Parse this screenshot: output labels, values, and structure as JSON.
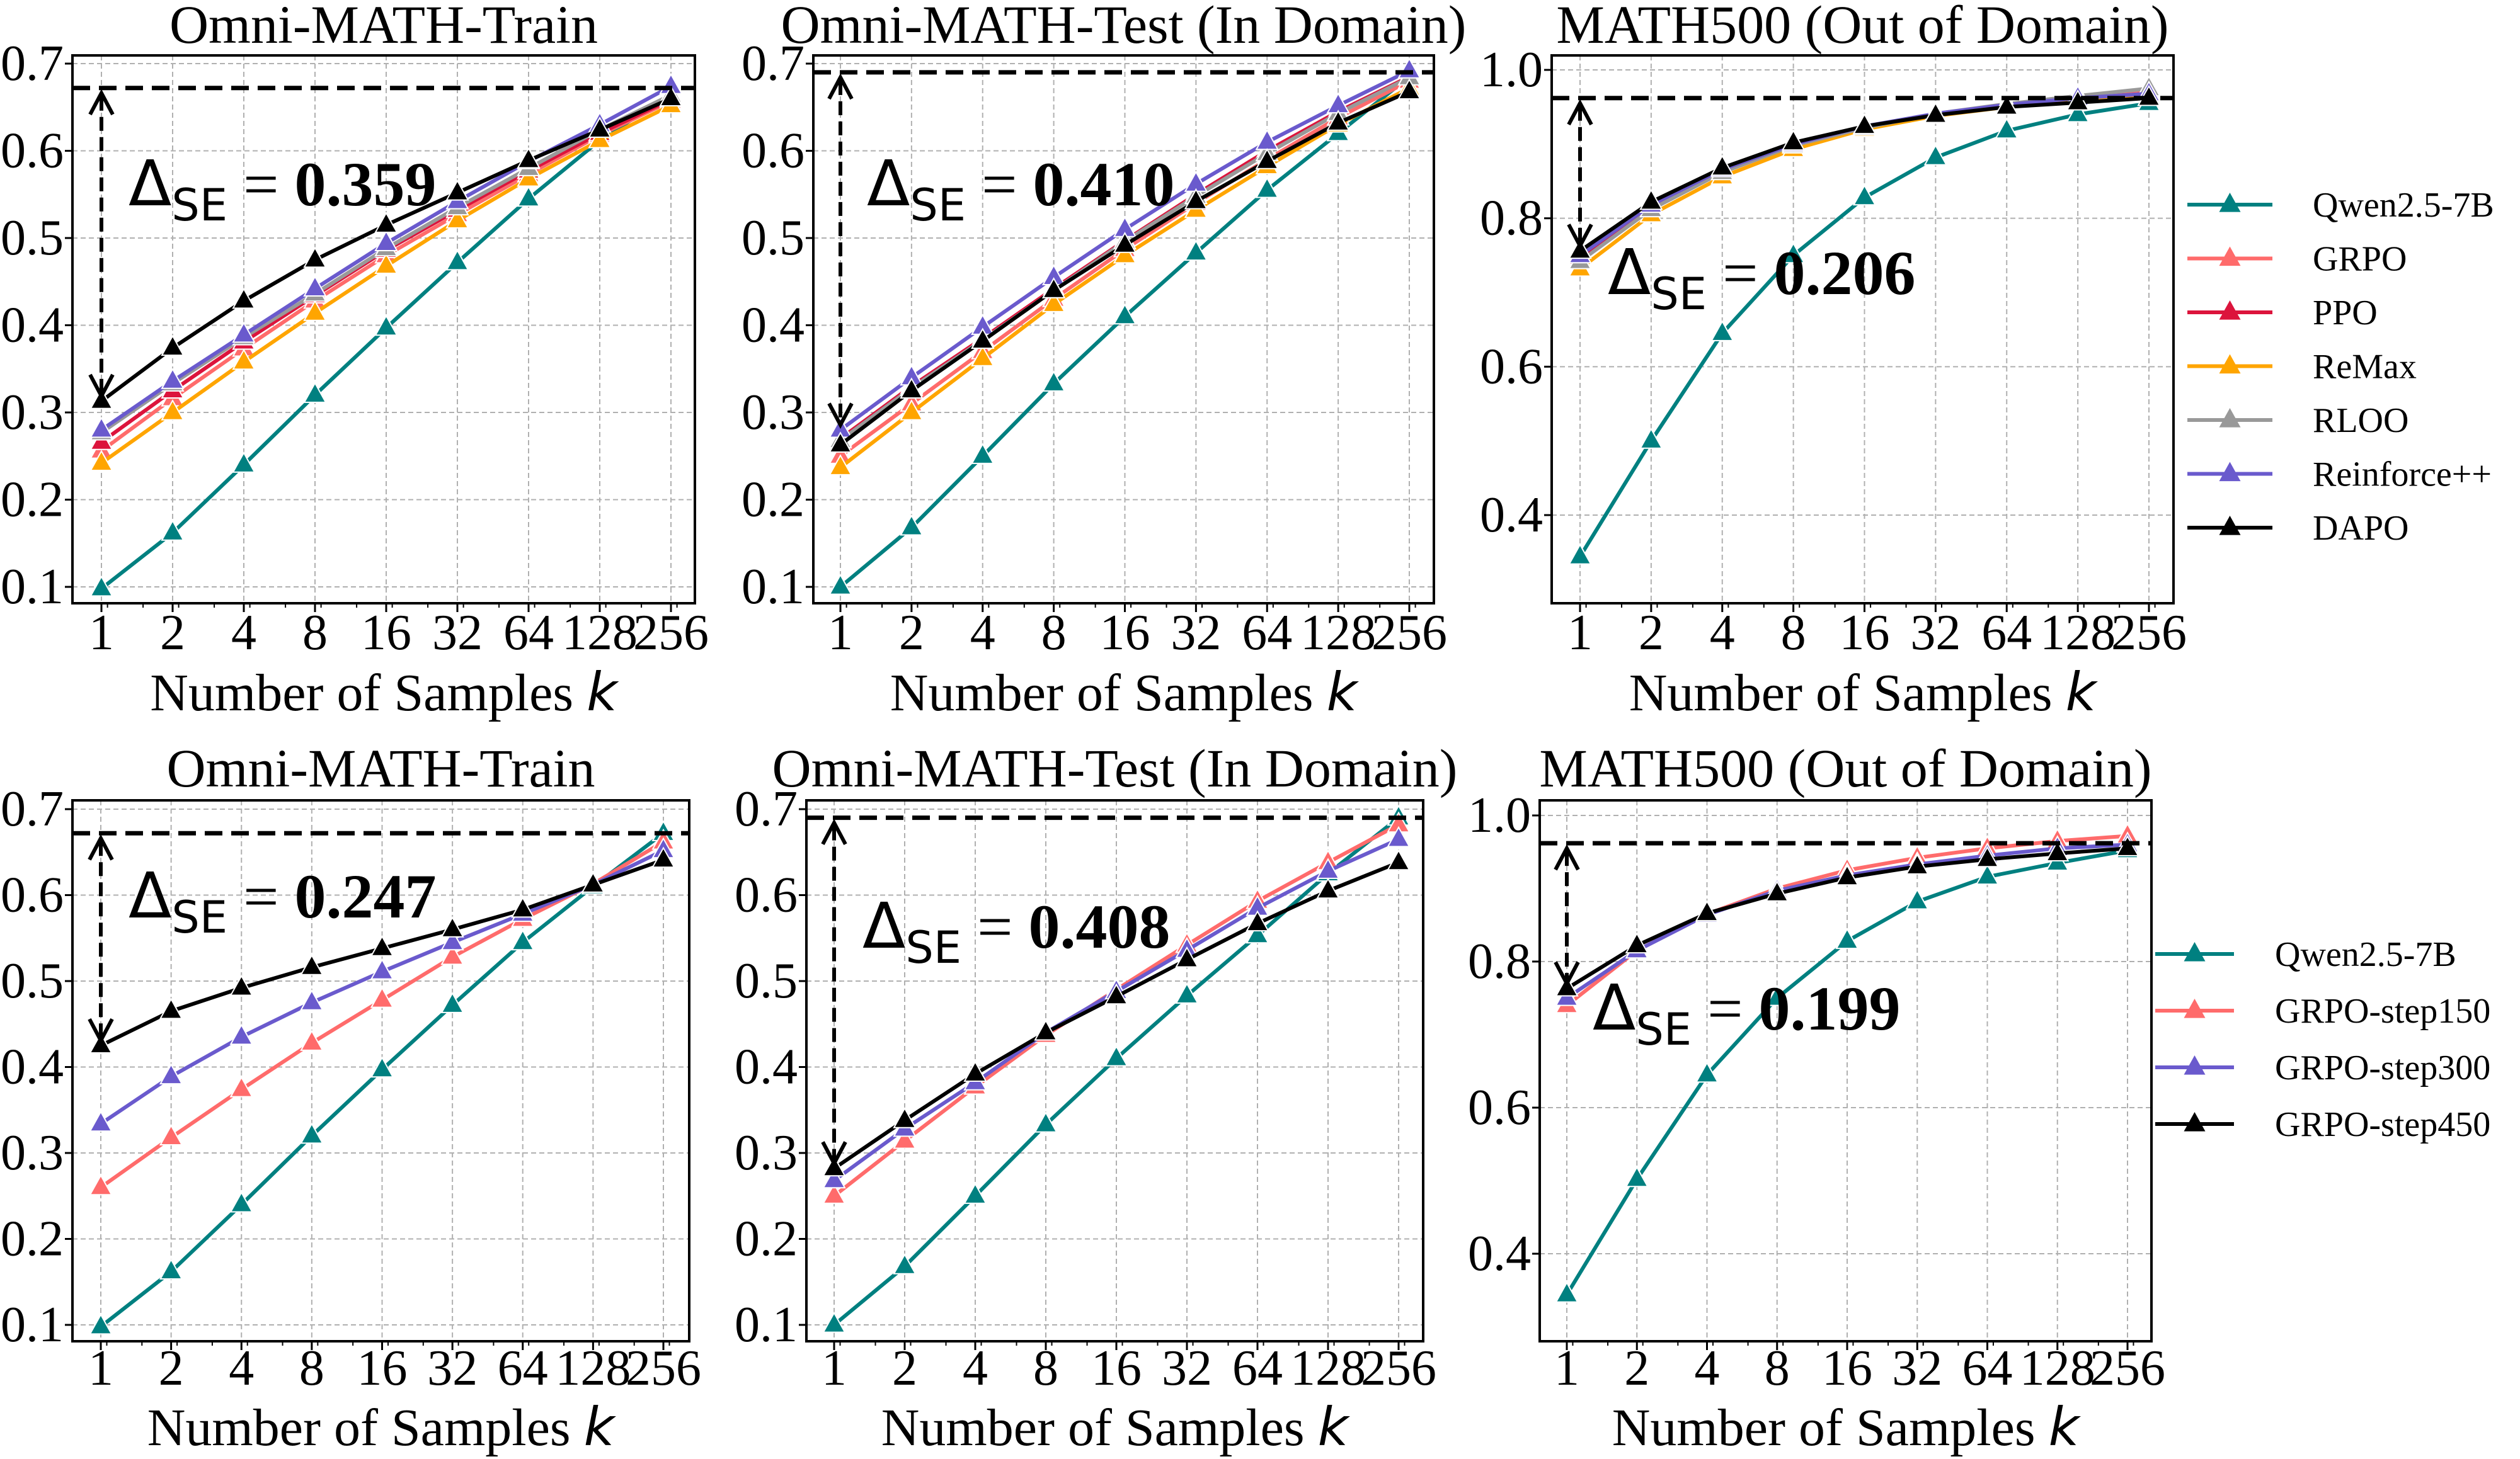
{
  "chart_data": [
    {
      "type": "line",
      "title": "Omni-MATH-Train",
      "xlabel": "Number of Samples",
      "xlabel_var": "k",
      "x": [
        1,
        2,
        4,
        8,
        16,
        32,
        64,
        128,
        256
      ],
      "xscale": "log2",
      "xticks": [
        "1",
        "2",
        "4",
        "8",
        "16",
        "32",
        "64",
        "128",
        "256"
      ],
      "yticks": [
        0.1,
        0.2,
        0.3,
        0.4,
        0.5,
        0.6,
        0.7
      ],
      "ytick_labels": [
        "0.1",
        "0.2",
        "0.3",
        "0.4",
        "0.5",
        "0.6",
        "0.7"
      ],
      "ylim": [
        0.08,
        0.71
      ],
      "grid": true,
      "marker": "triangle",
      "reference_line": 0.672,
      "arrow": [
        0.313,
        0.672
      ],
      "annotation": {
        "symbol": "Δ",
        "subscript": "SE",
        "equals": " = ",
        "value": "0.359"
      },
      "series": [
        {
          "name": "Qwen2.5-7B",
          "color": "#008080",
          "values": [
            0.098,
            0.162,
            0.24,
            0.32,
            0.397,
            0.472,
            0.545,
            0.612,
            0.665
          ]
        },
        {
          "name": "GRPO",
          "color": "#FF6B6B",
          "values": [
            0.256,
            0.316,
            0.373,
            0.428,
            0.48,
            0.527,
            0.573,
            0.618,
            0.657
          ]
        },
        {
          "name": "PPO",
          "color": "#DC143C",
          "values": [
            0.266,
            0.325,
            0.381,
            0.434,
            0.486,
            0.532,
            0.577,
            0.62,
            0.659
          ]
        },
        {
          "name": "ReMax",
          "color": "#FFA500",
          "values": [
            0.242,
            0.3,
            0.358,
            0.414,
            0.468,
            0.52,
            0.568,
            0.612,
            0.652
          ]
        },
        {
          "name": "RLOO",
          "color": "#999999",
          "values": [
            0.277,
            0.333,
            0.386,
            0.436,
            0.488,
            0.535,
            0.58,
            0.624,
            0.664
          ]
        },
        {
          "name": "Reinforce++",
          "color": "#6A5ACD",
          "values": [
            0.28,
            0.336,
            0.389,
            0.442,
            0.494,
            0.542,
            0.588,
            0.63,
            0.674
          ]
        },
        {
          "name": "DAPO",
          "color": "#000000",
          "values": [
            0.313,
            0.374,
            0.428,
            0.475,
            0.515,
            0.552,
            0.589,
            0.624,
            0.66
          ]
        }
      ]
    },
    {
      "type": "line",
      "title": "Omni-MATH-Test (In Domain)",
      "xlabel": "Number of Samples",
      "xlabel_var": "k",
      "x": [
        1,
        2,
        4,
        8,
        16,
        32,
        64,
        128,
        256
      ],
      "xscale": "log2",
      "xticks": [
        "1",
        "2",
        "4",
        "8",
        "16",
        "32",
        "64",
        "128",
        "256"
      ],
      "yticks": [
        0.1,
        0.2,
        0.3,
        0.4,
        0.5,
        0.6,
        0.7
      ],
      "ytick_labels": [
        "0.1",
        "0.2",
        "0.3",
        "0.4",
        "0.5",
        "0.6",
        "0.7"
      ],
      "ylim": [
        0.08,
        0.71
      ],
      "grid": true,
      "marker": "triangle",
      "reference_line": 0.69,
      "arrow": [
        0.28,
        0.69
      ],
      "annotation": {
        "symbol": "Δ",
        "subscript": "SE",
        "equals": " = ",
        "value": "0.410"
      },
      "series": [
        {
          "name": "Qwen2.5-7B",
          "color": "#008080",
          "values": [
            0.1,
            0.168,
            0.25,
            0.333,
            0.41,
            0.483,
            0.555,
            0.62,
            0.685
          ]
        },
        {
          "name": "GRPO",
          "color": "#FF6B6B",
          "values": [
            0.25,
            0.31,
            0.37,
            0.43,
            0.487,
            0.54,
            0.59,
            0.638,
            0.68
          ]
        },
        {
          "name": "PPO",
          "color": "#DC143C",
          "values": [
            0.27,
            0.33,
            0.385,
            0.442,
            0.497,
            0.55,
            0.6,
            0.645,
            0.685
          ]
        },
        {
          "name": "ReMax",
          "color": "#FFA500",
          "values": [
            0.237,
            0.3,
            0.362,
            0.424,
            0.48,
            0.532,
            0.582,
            0.63,
            0.672
          ]
        },
        {
          "name": "RLOO",
          "color": "#999999",
          "values": [
            0.268,
            0.328,
            0.383,
            0.44,
            0.496,
            0.548,
            0.597,
            0.643,
            0.684
          ]
        },
        {
          "name": "Reinforce++",
          "color": "#6A5ACD",
          "values": [
            0.28,
            0.34,
            0.398,
            0.455,
            0.51,
            0.562,
            0.61,
            0.652,
            0.692
          ]
        },
        {
          "name": "DAPO",
          "color": "#000000",
          "values": [
            0.263,
            0.325,
            0.382,
            0.44,
            0.492,
            0.542,
            0.588,
            0.632,
            0.668
          ]
        }
      ]
    },
    {
      "type": "line",
      "title": "MATH500 (Out of Domain)",
      "xlabel": "Number of Samples",
      "xlabel_var": "k",
      "x": [
        1,
        2,
        4,
        8,
        16,
        32,
        64,
        128,
        256
      ],
      "xscale": "log2",
      "xticks": [
        "1",
        "2",
        "4",
        "8",
        "16",
        "32",
        "64",
        "128",
        "256"
      ],
      "yticks": [
        0.4,
        0.6,
        0.8,
        1.0
      ],
      "ytick_labels": [
        "0.4",
        "0.6",
        "0.8",
        "1.0"
      ],
      "ylim": [
        0.28,
        1.02
      ],
      "grid": true,
      "marker": "triangle",
      "reference_line": 0.962,
      "arrow": [
        0.756,
        0.962
      ],
      "annotation": {
        "symbol": "Δ",
        "subscript": "SE",
        "equals": " = ",
        "value": "0.206"
      },
      "legend": "right",
      "series": [
        {
          "name": "Qwen2.5-7B",
          "color": "#008080",
          "values": [
            0.344,
            0.5,
            0.645,
            0.75,
            0.828,
            0.882,
            0.918,
            0.94,
            0.955
          ]
        },
        {
          "name": "GRPO",
          "color": "#FF6B6B",
          "values": [
            0.745,
            0.813,
            0.862,
            0.898,
            0.922,
            0.94,
            0.952,
            0.962,
            0.97
          ]
        },
        {
          "name": "PPO",
          "color": "#DC143C",
          "values": [
            0.748,
            0.815,
            0.864,
            0.9,
            0.923,
            0.94,
            0.952,
            0.962,
            0.968
          ]
        },
        {
          "name": "ReMax",
          "color": "#FFA500",
          "values": [
            0.732,
            0.805,
            0.856,
            0.893,
            0.92,
            0.938,
            0.95,
            0.96,
            0.966
          ]
        },
        {
          "name": "RLOO",
          "color": "#999999",
          "values": [
            0.742,
            0.812,
            0.862,
            0.898,
            0.922,
            0.941,
            0.954,
            0.965,
            0.975
          ]
        },
        {
          "name": "Reinforce++",
          "color": "#6A5ACD",
          "values": [
            0.75,
            0.818,
            0.866,
            0.9,
            0.924,
            0.941,
            0.953,
            0.962,
            0.968
          ]
        },
        {
          "name": "DAPO",
          "color": "#000000",
          "values": [
            0.756,
            0.822,
            0.868,
            0.902,
            0.924,
            0.939,
            0.95,
            0.956,
            0.962
          ]
        }
      ]
    },
    {
      "type": "line",
      "title": "Omni-MATH-Train",
      "xlabel": "Number of Samples",
      "xlabel_var": "k",
      "x": [
        1,
        2,
        4,
        8,
        16,
        32,
        64,
        128,
        256
      ],
      "xscale": "log2",
      "xticks": [
        "1",
        "2",
        "4",
        "8",
        "16",
        "32",
        "64",
        "128",
        "256"
      ],
      "yticks": [
        0.1,
        0.2,
        0.3,
        0.4,
        0.5,
        0.6,
        0.7
      ],
      "ytick_labels": [
        "0.1",
        "0.2",
        "0.3",
        "0.4",
        "0.5",
        "0.6",
        "0.7"
      ],
      "ylim": [
        0.08,
        0.71
      ],
      "grid": true,
      "marker": "triangle",
      "reference_line": 0.672,
      "arrow": [
        0.425,
        0.672
      ],
      "annotation": {
        "symbol": "Δ",
        "subscript": "SE",
        "equals": " = ",
        "value": "0.247"
      },
      "series": [
        {
          "name": "Qwen2.5-7B",
          "color": "#008080",
          "values": [
            0.098,
            0.162,
            0.24,
            0.32,
            0.397,
            0.472,
            0.545,
            0.61,
            0.672
          ]
        },
        {
          "name": "GRPO-step150",
          "color": "#FF6B6B",
          "values": [
            0.26,
            0.318,
            0.374,
            0.428,
            0.478,
            0.528,
            0.572,
            0.613,
            0.662
          ]
        },
        {
          "name": "GRPO-step300",
          "color": "#6A5ACD",
          "values": [
            0.334,
            0.389,
            0.435,
            0.475,
            0.511,
            0.545,
            0.578,
            0.612,
            0.652
          ]
        },
        {
          "name": "GRPO-step450",
          "color": "#000000",
          "values": [
            0.425,
            0.465,
            0.492,
            0.516,
            0.538,
            0.56,
            0.583,
            0.612,
            0.641
          ]
        }
      ]
    },
    {
      "type": "line",
      "title": "Omni-MATH-Test (In Domain)",
      "xlabel": "Number of Samples",
      "xlabel_var": "k",
      "x": [
        1,
        2,
        4,
        8,
        16,
        32,
        64,
        128,
        256
      ],
      "xscale": "log2",
      "xticks": [
        "1",
        "2",
        "4",
        "8",
        "16",
        "32",
        "64",
        "128",
        "256"
      ],
      "yticks": [
        0.1,
        0.2,
        0.3,
        0.4,
        0.5,
        0.6,
        0.7
      ],
      "ytick_labels": [
        "0.1",
        "0.2",
        "0.3",
        "0.4",
        "0.5",
        "0.6",
        "0.7"
      ],
      "ylim": [
        0.08,
        0.71
      ],
      "grid": true,
      "marker": "triangle",
      "reference_line": 0.69,
      "arrow": [
        0.282,
        0.69
      ],
      "annotation": {
        "symbol": "Δ",
        "subscript": "SE",
        "equals": " = ",
        "value": "0.408"
      },
      "series": [
        {
          "name": "Qwen2.5-7B",
          "color": "#008080",
          "values": [
            0.1,
            0.168,
            0.25,
            0.333,
            0.41,
            0.483,
            0.553,
            0.625,
            0.69
          ]
        },
        {
          "name": "GRPO-step150",
          "color": "#FF6B6B",
          "values": [
            0.25,
            0.314,
            0.377,
            0.437,
            0.49,
            0.542,
            0.593,
            0.638,
            0.682
          ]
        },
        {
          "name": "GRPO-step300",
          "color": "#6A5ACD",
          "values": [
            0.268,
            0.328,
            0.382,
            0.44,
            0.488,
            0.536,
            0.585,
            0.628,
            0.665
          ]
        },
        {
          "name": "GRPO-step450",
          "color": "#000000",
          "values": [
            0.282,
            0.338,
            0.392,
            0.44,
            0.482,
            0.525,
            0.567,
            0.605,
            0.638
          ]
        }
      ]
    },
    {
      "type": "line",
      "title": "MATH500 (Out of Domain)",
      "xlabel": "Number of Samples",
      "xlabel_var": "k",
      "x": [
        1,
        2,
        4,
        8,
        16,
        32,
        64,
        128,
        256
      ],
      "xscale": "log2",
      "xticks": [
        "1",
        "2",
        "4",
        "8",
        "16",
        "32",
        "64",
        "128",
        "256"
      ],
      "yticks": [
        0.4,
        0.6,
        0.8,
        1.0
      ],
      "ytick_labels": [
        "0.4",
        "0.6",
        "0.8",
        "1.0"
      ],
      "ylim": [
        0.28,
        1.02
      ],
      "grid": true,
      "marker": "triangle",
      "reference_line": 0.962,
      "arrow": [
        0.763,
        0.962
      ],
      "annotation": {
        "symbol": "Δ",
        "subscript": "SE",
        "equals": " = ",
        "value": "0.199"
      },
      "legend": "right",
      "series": [
        {
          "name": "Qwen2.5-7B",
          "color": "#008080",
          "values": [
            0.344,
            0.502,
            0.645,
            0.75,
            0.828,
            0.882,
            0.916,
            0.935,
            0.952
          ]
        },
        {
          "name": "GRPO-step150",
          "color": "#FF6B6B",
          "values": [
            0.74,
            0.815,
            0.865,
            0.9,
            0.925,
            0.942,
            0.955,
            0.965,
            0.972
          ]
        },
        {
          "name": "GRPO-step300",
          "color": "#6A5ACD",
          "values": [
            0.75,
            0.815,
            0.864,
            0.897,
            0.918,
            0.933,
            0.945,
            0.955,
            0.96
          ]
        },
        {
          "name": "GRPO-step450",
          "color": "#000000",
          "values": [
            0.763,
            0.822,
            0.866,
            0.893,
            0.915,
            0.93,
            0.94,
            0.948,
            0.955
          ]
        }
      ]
    }
  ]
}
